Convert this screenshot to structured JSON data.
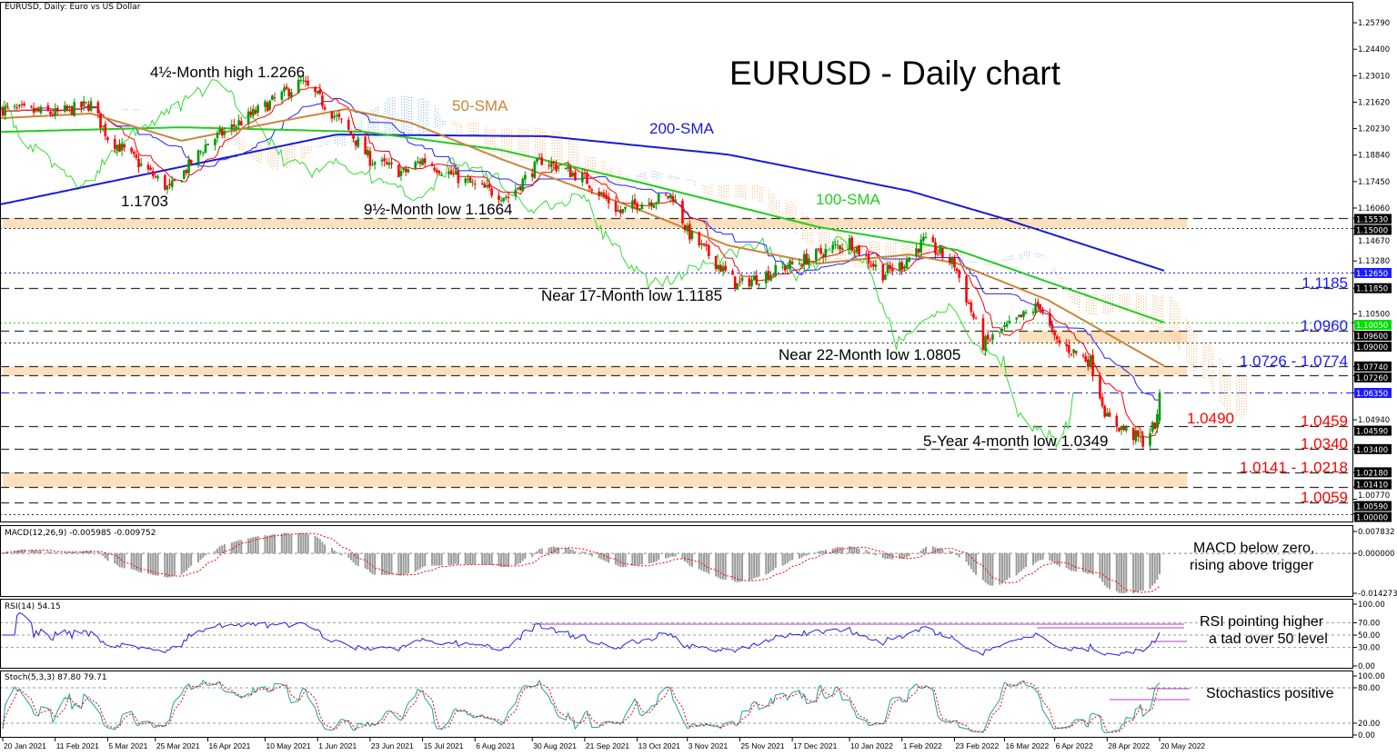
{
  "header": {
    "symbol_label": "EURUSD, Daily:  Euro vs US Dollar",
    "title": "EURUSD - Daily chart"
  },
  "panes": {
    "macd_label": "MACD(12,26,9) -0.005985 -0.009752",
    "rsi_label": "RSI(14) 54.15",
    "stoch_label": "Stoch(5,3,3) 87.80 79.71"
  },
  "annotations": {
    "high": "4½-Month high 1.2266",
    "low_1703": "1.1703",
    "low_1664": "9½-Month low 1.1664",
    "sma50": "50-SMA",
    "sma200": "200-SMA",
    "sma100": "100-SMA",
    "low_1185": "Near 17-Month low 1.1185",
    "low_1805": "Near 22-Month low 1.0805",
    "low_0349": "5-Year 4-month low 1.0349",
    "level_1490": "1.0490",
    "macd_note_1": "MACD below zero,",
    "macd_note_2": "rising above trigger",
    "rsi_note_1": "RSI pointing higher",
    "rsi_note_2": "a tad over 50 level",
    "stoch_note": "Stochastics positive"
  },
  "colors": {
    "up": "#009900",
    "down": "#ff0000",
    "sma50": "#c8863a",
    "sma100": "#22cc22",
    "sma200": "#1a1ad6",
    "zone": "#fde0bd",
    "tenkan": "#ff0000",
    "kijun": "#2222ff",
    "chikou": "#33dd33",
    "level_blue": "#1a1aff",
    "level_red": "#ff0000"
  },
  "chart_data": {
    "type": "candlestick",
    "title": "EURUSD - Daily chart",
    "x_range": [
      "2021-01-20",
      "2022-05-20"
    ],
    "ylim": [
      0.9955,
      1.2689
    ],
    "price_ticks": [
      "1.25790",
      "1.24400",
      "1.23010",
      "1.21620",
      "1.20230",
      "1.18840",
      "1.17450",
      "1.16060",
      "1.14670",
      "1.13280",
      "1.10500",
      "1.04940",
      "1.00770"
    ],
    "date_ticks": [
      "20 Jan 2021",
      "11 Feb 2021",
      "5 Mar 2021",
      "25 Mar 2021",
      "16 Apr 2021",
      "10 May 2021",
      "1 Jun 2021",
      "23 Jun 2021",
      "15 Jul 2021",
      "6 Aug 2021",
      "30 Aug 2021",
      "21 Sep 2021",
      "13 Oct 2021",
      "3 Nov 2021",
      "25 Nov 2021",
      "17 Dec 2021",
      "10 Jan 2022",
      "1 Feb 2022",
      "23 Feb 2022",
      "16 Mar 2022",
      "6 Apr 2022",
      "28 Apr 2022",
      "20 May 2022"
    ],
    "close_waypoints": [
      [
        "2021-01-20",
        1.2126
      ],
      [
        "2021-02-11",
        1.2102
      ],
      [
        "2021-02-26",
        1.215
      ],
      [
        "2021-03-05",
        1.198
      ],
      [
        "2021-03-31",
        1.1703
      ],
      [
        "2021-04-16",
        1.195
      ],
      [
        "2021-05-10",
        1.214
      ],
      [
        "2021-05-25",
        1.2266
      ],
      [
        "2021-06-01",
        1.219
      ],
      [
        "2021-06-16",
        1.198
      ],
      [
        "2021-06-23",
        1.186
      ],
      [
        "2021-07-07",
        1.179
      ],
      [
        "2021-07-15",
        1.186
      ],
      [
        "2021-08-06",
        1.172
      ],
      [
        "2021-08-20",
        1.1664
      ],
      [
        "2021-09-03",
        1.186
      ],
      [
        "2021-09-21",
        1.176
      ],
      [
        "2021-10-06",
        1.158
      ],
      [
        "2021-10-13",
        1.163
      ],
      [
        "2021-10-28",
        1.167
      ],
      [
        "2021-11-03",
        1.148
      ],
      [
        "2021-11-24",
        1.12
      ],
      [
        "2021-12-17",
        1.131
      ],
      [
        "2022-01-10",
        1.143
      ],
      [
        "2022-01-24",
        1.126
      ],
      [
        "2022-02-01",
        1.131
      ],
      [
        "2022-02-10",
        1.143
      ],
      [
        "2022-02-23",
        1.131
      ],
      [
        "2022-03-07",
        1.089
      ],
      [
        "2022-03-31",
        1.11
      ],
      [
        "2022-04-06",
        1.091
      ],
      [
        "2022-04-21",
        1.08
      ],
      [
        "2022-04-28",
        1.05
      ],
      [
        "2022-05-13",
        1.038
      ],
      [
        "2022-05-19",
        1.049
      ],
      [
        "2022-05-20",
        1.0635
      ]
    ],
    "sma200": [
      [
        "2021-01-19",
        1.1625
      ],
      [
        "2021-06-09",
        1.1992
      ],
      [
        "2021-09-05",
        1.1983
      ],
      [
        "2021-11-20",
        1.1887
      ],
      [
        "2022-02-04",
        1.1696
      ],
      [
        "2022-03-15",
        1.1553
      ],
      [
        "2022-05-22",
        1.1277
      ]
    ],
    "sma100": [
      [
        "2021-01-19",
        1.2006
      ],
      [
        "2021-04-05",
        1.203
      ],
      [
        "2021-06-21",
        1.2006
      ],
      [
        "2021-08-17",
        1.1911
      ],
      [
        "2021-10-13",
        1.1744
      ],
      [
        "2021-12-28",
        1.1506
      ],
      [
        "2022-02-24",
        1.1386
      ],
      [
        "2022-04-03",
        1.1219
      ],
      [
        "2022-05-22",
        1.1005
      ]
    ],
    "sma50": [
      [
        "2021-01-19",
        1.2078
      ],
      [
        "2021-02-26",
        1.2102
      ],
      [
        "2021-04-05",
        1.1959
      ],
      [
        "2021-05-13",
        1.2054
      ],
      [
        "2021-06-13",
        1.2126
      ],
      [
        "2021-07-10",
        1.2054
      ],
      [
        "2021-08-17",
        1.1863
      ],
      [
        "2021-10-13",
        1.1601
      ],
      [
        "2021-11-20",
        1.141
      ],
      [
        "2021-12-28",
        1.1315
      ],
      [
        "2022-02-04",
        1.1362
      ],
      [
        "2022-02-24",
        1.1315
      ],
      [
        "2022-04-03",
        1.1124
      ],
      [
        "2022-05-22",
        1.0776
      ]
    ],
    "levels": [
      {
        "price": 1.1553,
        "style": "dash",
        "axis_label": "1.15530",
        "axis_bg": "#000"
      },
      {
        "price": 1.15,
        "style": "dot",
        "axis_label": "1.15000",
        "axis_bg": "#000"
      },
      {
        "price": 1.1265,
        "style": "dot",
        "color": "#1a1aff",
        "axis_label": "1.12650",
        "axis_bg": "#1a1aff"
      },
      {
        "price": 1.1185,
        "style": "dash",
        "axis_label": "1.11850",
        "axis_bg": "#000",
        "label": "1.1185",
        "label_color": "#1a1aff"
      },
      {
        "price": 1.1005,
        "style": "dot",
        "color": "#22cc22",
        "axis_label": "1.10050",
        "axis_bg": "#00dd00"
      },
      {
        "price": 1.096,
        "style": "dash",
        "axis_label": "1.09600",
        "axis_bg": "#000",
        "label": "1.0960",
        "label_color": "#1a1aff"
      },
      {
        "price": 1.09,
        "style": "dot",
        "axis_label": "1.09000",
        "axis_bg": "#000"
      },
      {
        "price": 1.0774,
        "style": "dash",
        "axis_label": "1.07740",
        "axis_bg": "#000",
        "label": "1.0726 - 1.0774",
        "label_color": "#1a1aff"
      },
      {
        "price": 1.0726,
        "style": "dash",
        "axis_label": "1.07260",
        "axis_bg": "#000"
      },
      {
        "price": 1.0635,
        "style": "dashdot",
        "color": "#1a1aff",
        "axis_label": "1.06350",
        "axis_bg": "#1a1aff"
      },
      {
        "price": 1.0459,
        "style": "dash",
        "axis_label": "1.04590",
        "axis_bg": "#000",
        "label": "1.0459",
        "label_color": "#ff0000"
      },
      {
        "price": 1.034,
        "style": "dash",
        "axis_label": "1.03400",
        "axis_bg": "#000",
        "label": "1.0340",
        "label_color": "#ff0000"
      },
      {
        "price": 1.0218,
        "style": "dash",
        "axis_label": "1.02180",
        "axis_bg": "#000",
        "label": "1.0141 - 1.0218",
        "label_color": "#ff0000"
      },
      {
        "price": 1.0141,
        "style": "dash",
        "axis_label": "1.01410",
        "axis_bg": "#000"
      },
      {
        "price": 1.0059,
        "style": "dash",
        "axis_label": "1.00590",
        "axis_bg": "#000",
        "label": "1.0059",
        "label_color": "#ff0000"
      },
      {
        "price": 1.0,
        "style": "dot",
        "axis_label": "1.00000",
        "axis_bg": "#000"
      }
    ],
    "zones": [
      {
        "from": 1.15,
        "to": 1.1553,
        "start": "2021-01-20"
      },
      {
        "from": 1.09,
        "to": 1.096,
        "start": "2022-03-22"
      },
      {
        "from": 1.0726,
        "to": 1.0774,
        "start": "2021-01-20"
      },
      {
        "from": 1.0141,
        "to": 1.0218,
        "start": "2021-01-20"
      }
    ],
    "macd": {
      "ylim": [
        -0.014273,
        0.007832
      ],
      "ticks": [
        "0.007832",
        "0.000000",
        "-0.014273"
      ],
      "value": -0.005985,
      "signal": -0.009752
    },
    "rsi": {
      "ylim": [
        0,
        100
      ],
      "ticks": [
        "100.00",
        "70.00",
        "50.00",
        "30.00",
        "0.00"
      ],
      "value": 54.15
    },
    "stoch": {
      "ylim": [
        0,
        100
      ],
      "ticks": [
        "100.00",
        "80.00",
        "20.00",
        "0.00"
      ],
      "k": 87.8,
      "d": 79.71
    }
  }
}
